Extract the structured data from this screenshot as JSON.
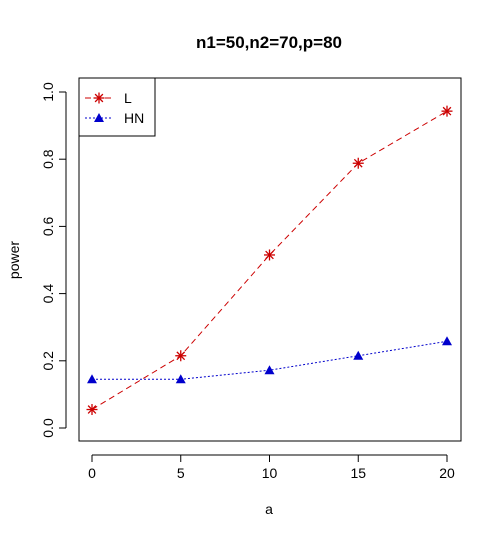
{
  "chart_data": {
    "type": "line",
    "title": "n1=50,n2=70,p=80",
    "xlabel": "a",
    "ylabel": "power",
    "x": [
      0,
      5,
      10,
      15,
      20
    ],
    "xlim": [
      0,
      20
    ],
    "ylim": [
      0,
      1
    ],
    "xticks": [
      "0",
      "5",
      "10",
      "15",
      "20"
    ],
    "yticks": [
      "0.0",
      "0.2",
      "0.4",
      "0.6",
      "0.8",
      "1.0"
    ],
    "grid": false,
    "legend_position": "top-left",
    "series": [
      {
        "name": "L",
        "values": [
          0.055,
          0.215,
          0.515,
          0.788,
          0.943
        ],
        "color": "#cc0000",
        "marker": "asterisk",
        "line_style": "dashed"
      },
      {
        "name": "HN",
        "values": [
          0.145,
          0.145,
          0.172,
          0.215,
          0.258
        ],
        "color": "#0000cc",
        "marker": "filled-triangle",
        "line_style": "dotted"
      }
    ]
  }
}
